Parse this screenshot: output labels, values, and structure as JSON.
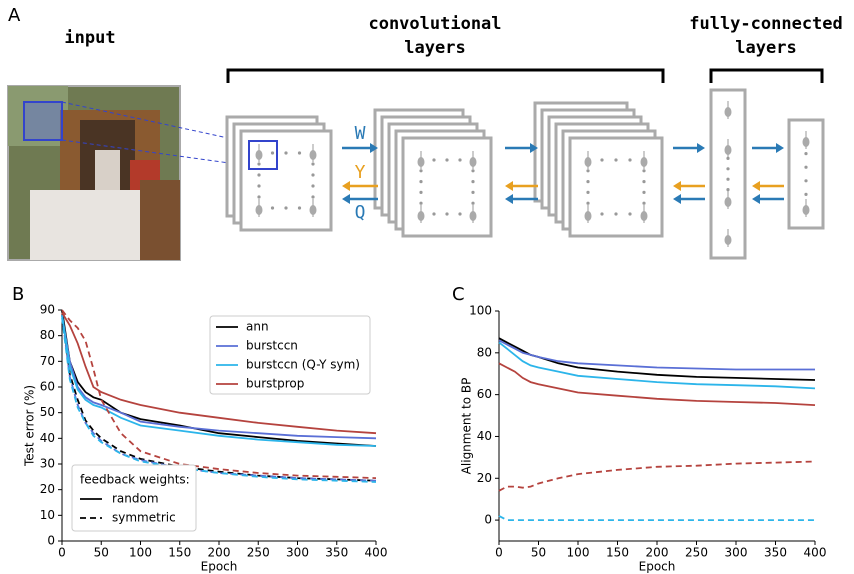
{
  "panel_labels": [
    "A",
    "B",
    "C"
  ],
  "diagram": {
    "input": "input",
    "conv_layers": "convolutional layers",
    "fc_layers": "fully-connected layers",
    "weights": [
      "W",
      "Y",
      "Q"
    ]
  },
  "chart_data": [
    {
      "type": "line",
      "x": [
        0,
        10,
        20,
        30,
        40,
        50,
        75,
        100,
        150,
        200,
        250,
        300,
        350,
        400
      ],
      "xlim": [
        0,
        400
      ],
      "ylim": [
        0,
        90
      ],
      "xticks": [
        0,
        50,
        100,
        150,
        200,
        250,
        300,
        350,
        400
      ],
      "yticks": [
        0,
        10,
        20,
        30,
        40,
        50,
        60,
        70,
        80,
        90
      ],
      "xlabel": "Epoch",
      "ylabel": "Test error (%)",
      "legend": "upper right",
      "linestyle_legend": {
        "title": "feedback weights:",
        "solid": "random",
        "dashed": "symmetric",
        "loc": "lower left"
      },
      "series": [
        {
          "name": "ann",
          "color": "#000000",
          "values": [
            90,
            70,
            62,
            58,
            56,
            55,
            50,
            47.5,
            45,
            42,
            40.5,
            39,
            38,
            37
          ],
          "symmetric_values": [
            90,
            65,
            55,
            47,
            43,
            40,
            35,
            32,
            29,
            27,
            25.5,
            24.5,
            24,
            23.5
          ]
        },
        {
          "name": "burstccn",
          "color": "#5a6fd6",
          "values": [
            88,
            70,
            60,
            56,
            54,
            53,
            50,
            46.5,
            44.5,
            43,
            42,
            41,
            40.5,
            40
          ],
          "symmetric_values": [
            88,
            64,
            53,
            46,
            42,
            39,
            34,
            31.5,
            28.5,
            26.5,
            25.5,
            24.5,
            24,
            23.5
          ]
        },
        {
          "name": "burstccn (Q-Y sym)",
          "color": "#2cb5ea",
          "values": [
            88,
            68,
            59,
            55,
            53,
            52,
            48,
            45,
            43,
            41,
            39.5,
            38.5,
            37.5,
            37
          ],
          "symmetric_values": [
            87,
            63,
            52,
            46,
            41,
            38.5,
            34,
            31,
            28.5,
            26.5,
            25,
            24,
            23.5,
            23
          ]
        },
        {
          "name": "burstprop",
          "color": "#b5433e",
          "values": [
            89,
            84,
            77,
            68,
            60,
            58,
            55,
            53,
            50,
            48,
            46,
            44.5,
            43,
            42
          ],
          "symmetric_values": [
            90,
            86,
            83,
            78,
            67,
            55,
            42,
            35,
            30,
            28,
            26.5,
            25.5,
            25,
            24.5
          ]
        }
      ]
    },
    {
      "type": "line",
      "x": [
        0,
        10,
        20,
        30,
        40,
        50,
        75,
        100,
        150,
        200,
        250,
        300,
        350,
        400
      ],
      "xlim": [
        0,
        400
      ],
      "ylim": [
        -10,
        100
      ],
      "xticks": [
        0,
        50,
        100,
        150,
        200,
        250,
        300,
        350,
        400
      ],
      "yticks": [
        0,
        20,
        40,
        60,
        80,
        100
      ],
      "xlabel": "Epoch",
      "ylabel": "Alignment to BP",
      "series": [
        {
          "color": "#000000",
          "values": [
            87,
            85,
            83,
            81,
            79,
            78,
            75,
            73,
            71,
            69.5,
            68.5,
            68,
            67.5,
            67
          ]
        },
        {
          "color": "#5a6fd6",
          "values": [
            86,
            84,
            82,
            80,
            79,
            78,
            76,
            75,
            74,
            73,
            72.5,
            72,
            72,
            72
          ]
        },
        {
          "color": "#2cb5ea",
          "values": [
            85,
            82,
            79,
            76,
            74,
            73,
            71,
            69,
            67.5,
            66,
            65,
            64.5,
            64,
            63
          ],
          "symmetric_values": [
            2,
            0,
            0,
            0,
            0,
            0,
            0,
            0,
            0,
            0,
            0,
            0,
            0,
            0
          ]
        },
        {
          "color": "#b5433e",
          "values": [
            75,
            73,
            71,
            68,
            66,
            65,
            63,
            61,
            59.5,
            58,
            57,
            56.5,
            56,
            55
          ],
          "symmetric_values": [
            14,
            16,
            16,
            15.5,
            16,
            17.5,
            20,
            22,
            24,
            25.5,
            26,
            27,
            27.5,
            28
          ]
        }
      ]
    }
  ]
}
